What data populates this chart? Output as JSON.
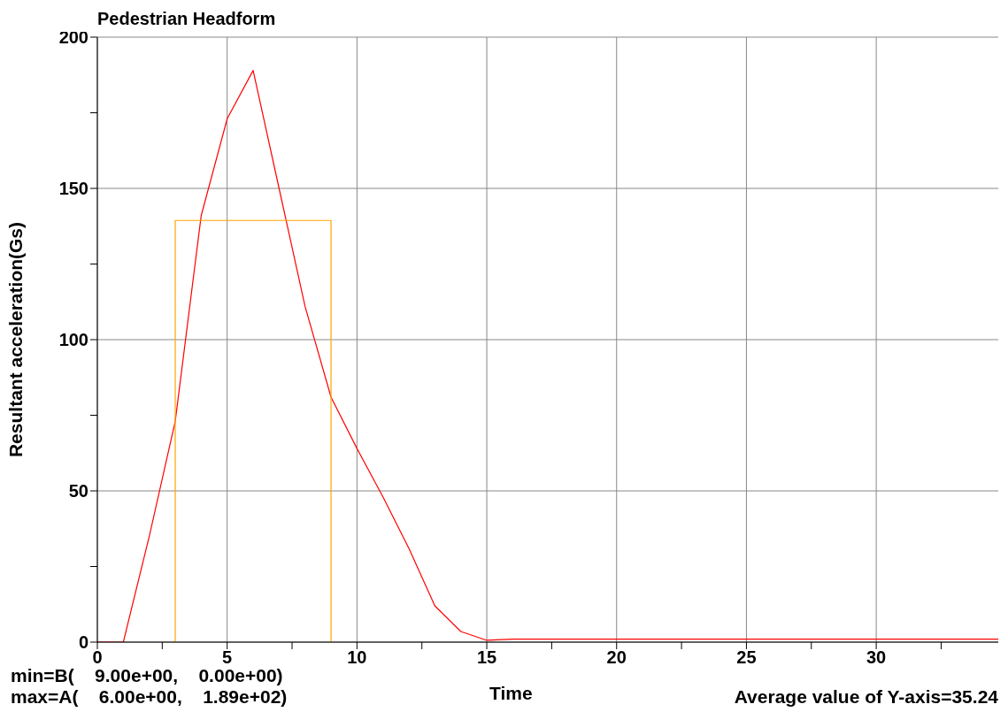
{
  "chart_data": {
    "type": "line",
    "title": "Pedestrian Headform",
    "xlabel": "Time",
    "ylabel": "Resultant acceleration(Gs)",
    "series": [
      {
        "type": "line",
        "color": "#ff0000",
        "x": [
          0,
          1,
          2,
          3,
          4,
          5,
          6,
          7,
          8,
          9,
          10,
          11,
          12,
          13,
          14,
          15,
          16,
          20,
          25,
          30,
          34.7
        ],
        "values": [
          0,
          0,
          35,
          73,
          141,
          173,
          189,
          150,
          111,
          81,
          64,
          48,
          31,
          12,
          3.5,
          0.6,
          1,
          1,
          1,
          1,
          1
        ]
      },
      {
        "type": "step",
        "color": "#ffa500",
        "x": [
          3,
          3,
          9
        ],
        "values": [
          0,
          139.4,
          0
        ]
      }
    ],
    "xlim": [
      0,
      34.7
    ],
    "xticks": [
      0,
      {
        "value": 2.5,
        "label": null
      },
      5,
      {
        "value": 7.5,
        "label": null
      },
      10,
      {
        "value": 12.5,
        "label": null
      },
      15,
      {
        "value": 17.5,
        "label": null
      },
      20,
      {
        "value": 22.5,
        "label": null
      },
      25,
      {
        "value": 27.5,
        "label": null
      },
      30,
      {
        "value": 32.5,
        "label": null
      }
    ],
    "ylim": [
      0,
      200
    ],
    "yticks": [
      0,
      {
        "value": 25,
        "label": null
      },
      50,
      {
        "value": 75,
        "label": null
      },
      100,
      {
        "value": 125,
        "label": null
      },
      150,
      {
        "value": 175,
        "label": null
      },
      200
    ],
    "grid": true,
    "marker": "none",
    "annotations": [
      "min=B(    9.00e+00,    0.00e+00)",
      "max=A(    6.00e+00,    1.89e+02)",
      "Average value of Y-axis=35.24"
    ]
  }
}
